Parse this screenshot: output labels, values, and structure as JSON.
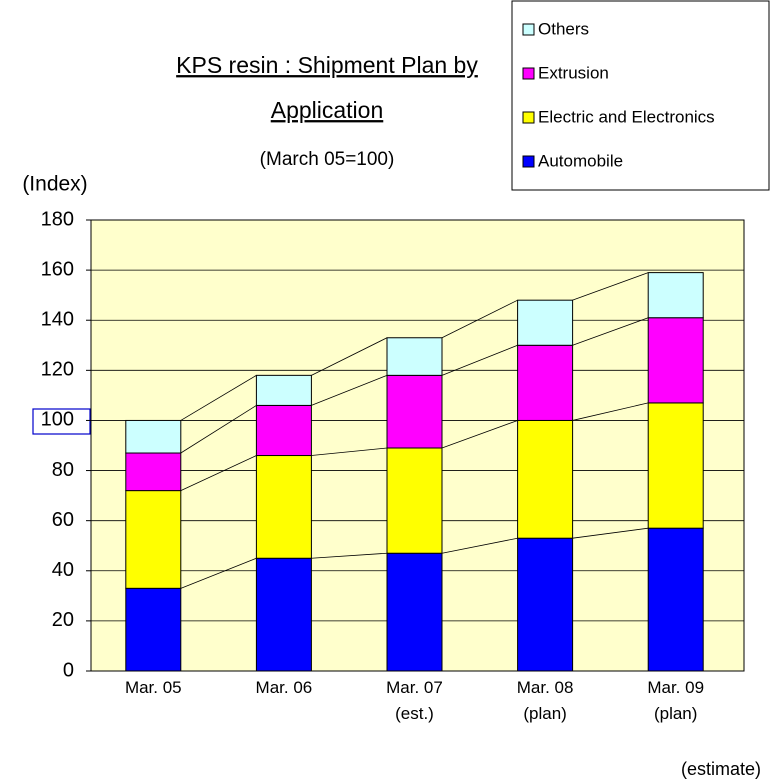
{
  "chart_data": {
    "type": "stacked_bar",
    "title": [
      "KPS resin : Shipment Plan by",
      "Application"
    ],
    "subtitle": "(March 05=100)",
    "y_label": "(Index)",
    "note": "(estimate)",
    "categories": [
      "Mar. 05",
      "Mar. 06",
      "Mar. 07\n(est.)",
      "Mar. 08\n(plan)",
      "Mar. 09\n(plan)"
    ],
    "series": [
      {
        "name": "Automobile",
        "color": "#0000ff",
        "values": [
          33,
          45,
          47,
          53,
          57
        ]
      },
      {
        "name": "Electric and Electronics",
        "color": "#ffff00",
        "values": [
          39,
          41,
          42,
          47,
          50
        ]
      },
      {
        "name": "Extrusion",
        "color": "#ff00ff",
        "values": [
          15,
          20,
          29,
          30,
          34
        ]
      },
      {
        "name": "Others",
        "color": "#ccffff",
        "values": [
          13,
          12,
          15,
          18,
          18
        ]
      }
    ],
    "ylim": [
      0,
      180
    ],
    "yticks": [
      0,
      20,
      40,
      60,
      80,
      100,
      120,
      140,
      160,
      180
    ],
    "grid": true,
    "plot_background": "#ffffcc",
    "legend": "top-right"
  }
}
